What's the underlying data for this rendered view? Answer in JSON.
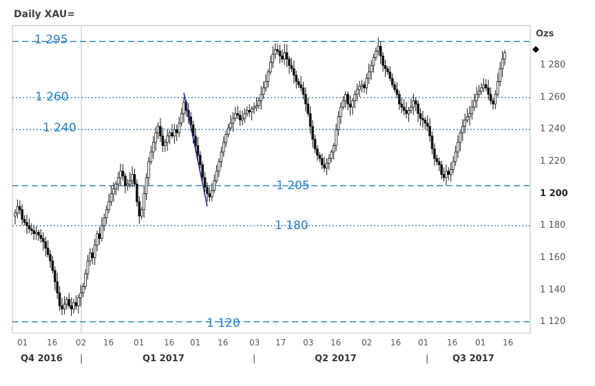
{
  "chart_data": {
    "type": "candlestick",
    "title": "Daily XAU=",
    "unit": "Ozs",
    "ylim": [
      1113,
      1305
    ],
    "y_ticks": [
      "1 120",
      "1 140",
      "1 160",
      "1 180",
      "1 200",
      "1 220",
      "1 240",
      "1 260",
      "1 280"
    ],
    "y_ticks_values": [
      1120,
      1140,
      1160,
      1180,
      1200,
      1220,
      1240,
      1260,
      1280
    ],
    "bold_tick": "1 200",
    "x_ticks": [
      "01",
      "16",
      "02",
      "16",
      "01",
      "16",
      "01",
      "16",
      "03",
      "17",
      "03",
      "16",
      "02",
      "16",
      "01",
      "16",
      "03",
      "17",
      "01",
      "16"
    ],
    "quarters": [
      "Q4 2016",
      "Q1 2017",
      "Q2 2017",
      "Q3 2017"
    ],
    "levels": [
      {
        "label": "1 295",
        "value": 1295,
        "style": "dashed"
      },
      {
        "label": "1 260",
        "value": 1260,
        "style": "dotted"
      },
      {
        "label": "1 240",
        "value": 1240,
        "style": "dotted"
      },
      {
        "label": "1 205",
        "value": 1205,
        "style": "dashed"
      },
      {
        "label": "1 180",
        "value": 1180,
        "style": "dotted"
      },
      {
        "label": "1 120",
        "value": 1120,
        "style": "dashed"
      }
    ],
    "last_price": 1290,
    "close_path": [
      1188,
      1192,
      1190,
      1184,
      1182,
      1180,
      1178,
      1177,
      1175,
      1176,
      1174,
      1172,
      1170,
      1166,
      1162,
      1158,
      1152,
      1145,
      1138,
      1130,
      1128,
      1131,
      1134,
      1130,
      1128,
      1132,
      1130,
      1135,
      1138,
      1142,
      1150,
      1158,
      1163,
      1160,
      1168,
      1175,
      1172,
      1180,
      1185,
      1190,
      1195,
      1200,
      1203,
      1206,
      1210,
      1214,
      1211,
      1205,
      1206,
      1208,
      1212,
      1206,
      1195,
      1186,
      1190,
      1200,
      1210,
      1220,
      1226,
      1232,
      1238,
      1242,
      1236,
      1230,
      1232,
      1236,
      1238,
      1236,
      1240,
      1238,
      1244,
      1250,
      1257,
      1252,
      1248,
      1243,
      1236,
      1230,
      1224,
      1218,
      1210,
      1204,
      1200,
      1198,
      1202,
      1208,
      1214,
      1220,
      1226,
      1232,
      1237,
      1241,
      1244,
      1247,
      1250,
      1249,
      1246,
      1247,
      1250,
      1252,
      1251,
      1253,
      1254,
      1255,
      1258,
      1262,
      1266,
      1270,
      1276,
      1282,
      1287,
      1290,
      1289,
      1286,
      1284,
      1288,
      1284,
      1280,
      1278,
      1274,
      1270,
      1268,
      1266,
      1262,
      1256,
      1250,
      1242,
      1234,
      1228,
      1224,
      1222,
      1218,
      1216,
      1219,
      1222,
      1226,
      1230,
      1240,
      1248,
      1254,
      1258,
      1262,
      1256,
      1254,
      1258,
      1262,
      1265,
      1267,
      1268,
      1266,
      1272,
      1276,
      1280,
      1285,
      1289,
      1292,
      1286,
      1280,
      1278,
      1276,
      1272,
      1268,
      1265,
      1262,
      1256,
      1254,
      1252,
      1250,
      1252,
      1254,
      1258,
      1256,
      1250,
      1247,
      1246,
      1244,
      1242,
      1236,
      1228,
      1222,
      1220,
      1218,
      1212,
      1210,
      1214,
      1212,
      1215,
      1220,
      1226,
      1232,
      1238,
      1242,
      1246,
      1248,
      1250,
      1254,
      1258,
      1262,
      1264,
      1266,
      1268,
      1266,
      1262,
      1258,
      1256,
      1262,
      1270,
      1278,
      1284,
      1288
    ]
  }
}
